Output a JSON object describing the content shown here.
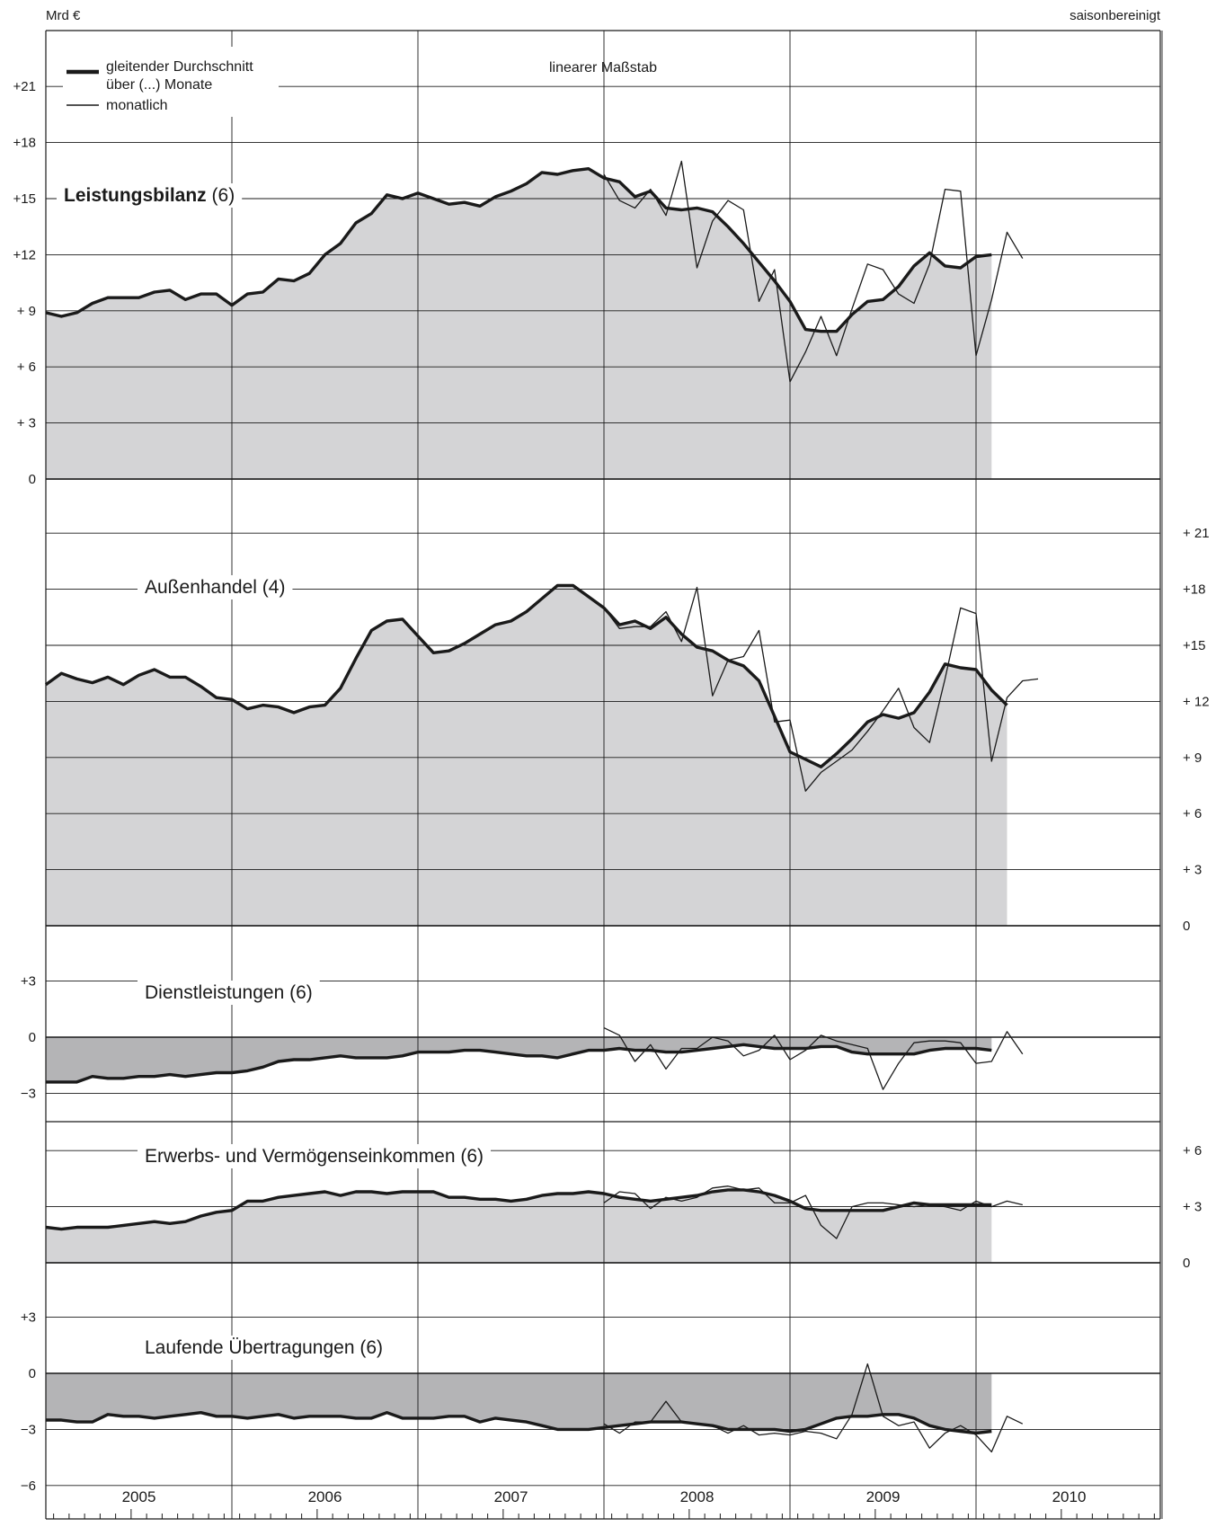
{
  "unit_label": "Mrd €",
  "adjustment_label": "saisonbereinigt",
  "scale_label": "linearer Maßstab",
  "legend": {
    "average": "gleitender Durchschnitt",
    "average_2": "über (...) Monate",
    "monthly": "monatlich"
  },
  "years": [
    "2005",
    "2006",
    "2007",
    "2008",
    "2009",
    "2010"
  ],
  "colors": {
    "fill_positive": "#d4d4d6",
    "fill_negative": "#b4b4b6",
    "line": "#1a1a1a",
    "grid": "#1a1a1a"
  },
  "chart_data": [
    {
      "type": "line",
      "name": "Leistungsbilanz",
      "title": "Leistungsbilanz",
      "title_suffix": "(6)",
      "ylim": [
        0,
        21
      ],
      "ticks": [
        0,
        3,
        6,
        9,
        12,
        15,
        18,
        21
      ],
      "tick_labels": [
        "0",
        "+ 3",
        "+ 6",
        "+ 9",
        "+12",
        "+15",
        "+18",
        "+21"
      ],
      "axis_side": "left",
      "x_start": "2005-01",
      "series": [
        {
          "name": "gleitender Durchschnitt (6)",
          "values": [
            8.9,
            8.7,
            8.9,
            9.4,
            9.7,
            9.7,
            9.7,
            10.0,
            10.1,
            9.6,
            9.9,
            9.9,
            9.3,
            9.9,
            10.0,
            10.7,
            10.6,
            11.0,
            12.0,
            12.6,
            13.7,
            14.2,
            15.2,
            15.0,
            15.3,
            15.0,
            14.7,
            14.8,
            14.6,
            15.1,
            15.4,
            15.8,
            16.4,
            16.3,
            16.5,
            16.6,
            16.1,
            15.9,
            15.1,
            15.4,
            14.5,
            14.4,
            14.5,
            14.3,
            13.5,
            12.6,
            11.6,
            10.6,
            9.5,
            8.0,
            7.9,
            7.9,
            8.8,
            9.5,
            9.6,
            10.3,
            11.4,
            12.1,
            11.4,
            11.3,
            11.9,
            12.0
          ]
        },
        {
          "name": "monatlich",
          "start_index": 36,
          "values": [
            16.3,
            14.9,
            14.5,
            15.5,
            14.1,
            17.0,
            11.3,
            13.8,
            14.9,
            14.4,
            9.5,
            11.2,
            5.2,
            6.8,
            8.7,
            6.6,
            9.1,
            11.5,
            11.2,
            9.9,
            9.4,
            11.5,
            15.5,
            15.4,
            6.6,
            9.6,
            13.2,
            11.8
          ]
        }
      ]
    },
    {
      "type": "line",
      "name": "Außenhandel",
      "title": "Außenhandel",
      "title_suffix": "(4)",
      "ylim": [
        0,
        21
      ],
      "ticks": [
        0,
        3,
        6,
        9,
        12,
        15,
        18,
        21
      ],
      "tick_labels": [
        "0",
        "+ 3",
        "+ 6",
        "+ 9",
        "+ 12",
        "+15",
        "+18",
        "+ 21"
      ],
      "axis_side": "right",
      "x_start": "2005-01",
      "series": [
        {
          "name": "gleitender Durchschnitt (4)",
          "values": [
            12.9,
            13.5,
            13.2,
            13.0,
            13.3,
            12.9,
            13.4,
            13.7,
            13.3,
            13.3,
            12.8,
            12.2,
            12.1,
            11.6,
            11.8,
            11.7,
            11.4,
            11.7,
            11.8,
            12.7,
            14.3,
            15.8,
            16.3,
            16.4,
            15.5,
            14.6,
            14.7,
            15.1,
            15.6,
            16.1,
            16.3,
            16.8,
            17.5,
            18.2,
            18.2,
            17.6,
            17.0,
            16.1,
            16.3,
            15.9,
            16.5,
            15.6,
            14.9,
            14.7,
            14.2,
            13.9,
            13.1,
            11.2,
            9.3,
            8.9,
            8.5,
            9.2,
            10.0,
            10.9,
            11.3,
            11.1,
            11.4,
            12.5,
            14.0,
            13.8,
            13.7,
            12.6,
            11.8
          ]
        },
        {
          "name": "monatlich",
          "start_index": 36,
          "values": [
            17.0,
            15.9,
            16.0,
            16.0,
            16.8,
            15.2,
            18.1,
            12.3,
            14.2,
            14.4,
            15.8,
            10.9,
            11.0,
            7.2,
            8.2,
            8.8,
            9.4,
            10.4,
            11.5,
            12.7,
            10.6,
            9.8,
            13.2,
            17.0,
            16.7,
            8.8,
            12.2,
            13.1,
            13.2
          ]
        }
      ]
    },
    {
      "type": "line",
      "name": "Dienstleistungen",
      "title": "Dienstleistungen",
      "title_suffix": "(6)",
      "ylim": [
        -3,
        3
      ],
      "ticks": [
        -3,
        0,
        3
      ],
      "tick_labels": [
        "−3",
        "0",
        "+3"
      ],
      "axis_side": "left",
      "x_start": "2005-01",
      "series": [
        {
          "name": "gleitender Durchschnitt (6)",
          "values": [
            -2.4,
            -2.4,
            -2.4,
            -2.1,
            -2.2,
            -2.2,
            -2.1,
            -2.1,
            -2.0,
            -2.1,
            -2.0,
            -1.9,
            -1.9,
            -1.8,
            -1.6,
            -1.3,
            -1.2,
            -1.2,
            -1.1,
            -1.0,
            -1.1,
            -1.1,
            -1.1,
            -1.0,
            -0.8,
            -0.8,
            -0.8,
            -0.7,
            -0.7,
            -0.8,
            -0.9,
            -1.0,
            -1.0,
            -1.1,
            -0.9,
            -0.7,
            -0.7,
            -0.6,
            -0.7,
            -0.7,
            -0.8,
            -0.8,
            -0.7,
            -0.6,
            -0.5,
            -0.4,
            -0.5,
            -0.6,
            -0.6,
            -0.6,
            -0.5,
            -0.5,
            -0.8,
            -0.9,
            -0.9,
            -0.9,
            -0.9,
            -0.7,
            -0.6,
            -0.6,
            -0.6,
            -0.7
          ]
        },
        {
          "name": "monatlich",
          "start_index": 36,
          "values": [
            0.5,
            0.1,
            -1.3,
            -0.4,
            -1.7,
            -0.6,
            -0.6,
            0.0,
            -0.2,
            -1.0,
            -0.7,
            0.1,
            -1.2,
            -0.7,
            0.1,
            -0.2,
            -0.4,
            -0.6,
            -2.8,
            -1.4,
            -0.3,
            -0.2,
            -0.2,
            -0.3,
            -1.4,
            -1.3,
            0.3,
            -0.9
          ]
        }
      ]
    },
    {
      "type": "line",
      "name": "Erwerbs- und Vermögenseinkommen",
      "title": "Erwerbs- und Vermögenseinkommen",
      "title_suffix": "(6)",
      "ylim": [
        0,
        6
      ],
      "ticks": [
        0,
        3,
        6
      ],
      "tick_labels": [
        "0",
        "+ 3",
        "+ 6"
      ],
      "axis_side": "right",
      "x_start": "2005-01",
      "series": [
        {
          "name": "gleitender Durchschnitt (6)",
          "values": [
            1.9,
            1.8,
            1.9,
            1.9,
            1.9,
            2.0,
            2.1,
            2.2,
            2.1,
            2.2,
            2.5,
            2.7,
            2.8,
            3.3,
            3.3,
            3.5,
            3.6,
            3.7,
            3.8,
            3.6,
            3.8,
            3.8,
            3.7,
            3.8,
            3.8,
            3.8,
            3.5,
            3.5,
            3.4,
            3.4,
            3.3,
            3.4,
            3.6,
            3.7,
            3.7,
            3.8,
            3.7,
            3.5,
            3.4,
            3.3,
            3.4,
            3.5,
            3.6,
            3.8,
            3.9,
            3.9,
            3.8,
            3.6,
            3.3,
            2.9,
            2.8,
            2.8,
            2.8,
            2.8,
            2.8,
            3.0,
            3.2,
            3.1,
            3.1,
            3.1,
            3.1,
            3.1
          ]
        },
        {
          "name": "monatlich",
          "start_index": 36,
          "values": [
            3.2,
            3.8,
            3.7,
            2.9,
            3.5,
            3.3,
            3.5,
            4.0,
            4.1,
            3.9,
            4.0,
            3.2,
            3.2,
            3.6,
            2.0,
            1.3,
            3.0,
            3.2,
            3.2,
            3.1,
            3.0,
            3.1,
            3.0,
            2.8,
            3.3,
            3.0,
            3.3,
            3.1
          ]
        }
      ]
    },
    {
      "type": "line",
      "name": "Laufende Übertragungen",
      "title": "Laufende Übertragungen",
      "title_suffix": "(6)",
      "ylim": [
        -6,
        3
      ],
      "ticks": [
        -6,
        -3,
        0,
        3
      ],
      "tick_labels": [
        "−6",
        "−3",
        "0",
        "+3"
      ],
      "axis_side": "left",
      "x_start": "2005-01",
      "series": [
        {
          "name": "gleitender Durchschnitt (6)",
          "values": [
            -2.5,
            -2.5,
            -2.6,
            -2.6,
            -2.2,
            -2.3,
            -2.3,
            -2.4,
            -2.3,
            -2.2,
            -2.1,
            -2.3,
            -2.3,
            -2.4,
            -2.3,
            -2.2,
            -2.4,
            -2.3,
            -2.3,
            -2.3,
            -2.4,
            -2.4,
            -2.1,
            -2.4,
            -2.4,
            -2.4,
            -2.3,
            -2.3,
            -2.6,
            -2.4,
            -2.5,
            -2.6,
            -2.8,
            -3.0,
            -3.0,
            -3.0,
            -2.9,
            -2.8,
            -2.7,
            -2.6,
            -2.6,
            -2.6,
            -2.7,
            -2.8,
            -3.0,
            -3.0,
            -3.0,
            -3.0,
            -3.1,
            -3.0,
            -2.7,
            -2.4,
            -2.3,
            -2.3,
            -2.2,
            -2.2,
            -2.4,
            -2.8,
            -3.0,
            -3.1,
            -3.2,
            -3.1
          ]
        },
        {
          "name": "monatlich",
          "start_index": 36,
          "values": [
            -2.7,
            -3.2,
            -2.6,
            -2.6,
            -1.5,
            -2.6,
            -2.7,
            -2.8,
            -3.2,
            -2.8,
            -3.3,
            -3.2,
            -3.3,
            -3.1,
            -3.2,
            -3.5,
            -2.2,
            0.5,
            -2.3,
            -2.8,
            -2.6,
            -4.0,
            -3.2,
            -2.8,
            -3.3,
            -4.2,
            -2.3,
            -2.7
          ]
        }
      ]
    }
  ]
}
